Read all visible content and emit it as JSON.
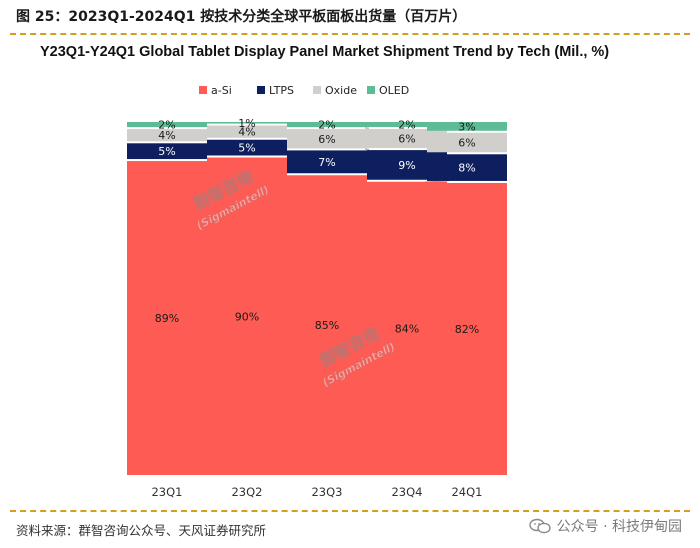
{
  "figure": {
    "title": "图 25：2023Q1-2024Q1 按技术分类全球平板面板出货量（百万片）",
    "source": "资料来源：群智咨询公众号、天风证券研究所",
    "watermark_credit": "公众号 · 科技伊甸园",
    "watermark_stamp_cn": "群智咨询",
    "watermark_stamp_en": "(Sigmaintell)"
  },
  "colors": {
    "a-Si": "#fe5b54",
    "LTPS": "#0d1f5e",
    "Oxide": "#d0cfcb",
    "OLED": "#5dbb96",
    "connector": "#9a9a9a",
    "rule": "#d4a017"
  },
  "chart_data": {
    "type": "bar",
    "stacked": true,
    "normalized_percent": true,
    "title": "Y23Q1-Y24Q1 Global Tablet Display Panel Market Shipment Trend by Tech (Mil., %)",
    "categories": [
      "23Q1",
      "23Q2",
      "23Q3",
      "23Q4",
      "24Q1"
    ],
    "series": [
      {
        "name": "a-Si",
        "values": [
          89,
          90,
          85,
          84,
          82
        ],
        "labels": [
          "89%",
          "90%",
          "85%",
          "84%",
          "82%"
        ]
      },
      {
        "name": "LTPS",
        "values": [
          5,
          5,
          7,
          9,
          8
        ],
        "labels": [
          "5%",
          "5%",
          "7%",
          "9%",
          "8%"
        ]
      },
      {
        "name": "Oxide",
        "values": [
          4,
          4,
          6,
          6,
          6
        ],
        "labels": [
          "4%",
          "4%",
          "6%",
          "6%",
          "6%"
        ]
      },
      {
        "name": "OLED",
        "values": [
          2,
          1,
          2,
          2,
          3
        ],
        "labels": [
          "2%",
          "1%",
          "2%",
          "2%",
          "3%"
        ]
      }
    ],
    "legend": [
      "a-Si",
      "LTPS",
      "Oxide",
      "OLED"
    ],
    "legend_position": "top-center",
    "xlabel": "",
    "ylabel": "",
    "grid": false
  }
}
